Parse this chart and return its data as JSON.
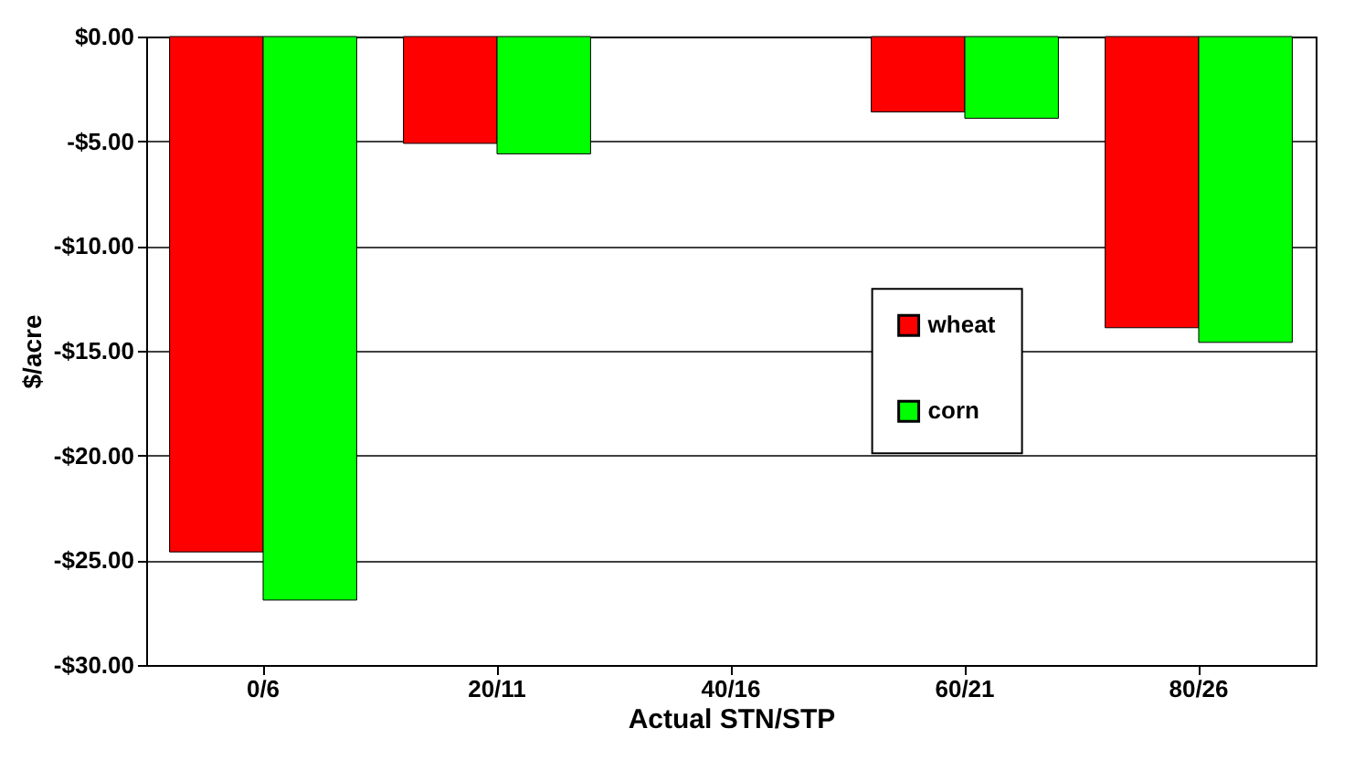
{
  "chart_data": {
    "type": "bar",
    "xlabel": "Actual STN/STP",
    "ylabel": "$/acre",
    "categories": [
      "0/6",
      "20/11",
      "40/16",
      "60/21",
      "80/26"
    ],
    "series": [
      {
        "name": "wheat",
        "color": "#ff0000",
        "values": [
          -24.6,
          -5.1,
          null,
          -3.6,
          -13.9
        ]
      },
      {
        "name": "corn",
        "color": "#00ff00",
        "values": [
          -26.9,
          -5.6,
          null,
          -3.9,
          -14.6
        ]
      }
    ],
    "ylim": [
      -30,
      0
    ],
    "yticks": [
      {
        "value": -30,
        "label": "-$30.00"
      },
      {
        "value": -25,
        "label": "-$25.00"
      },
      {
        "value": -20,
        "label": "-$20.00"
      },
      {
        "value": -15,
        "label": "-$15.00"
      },
      {
        "value": -10,
        "label": "-$10.00"
      },
      {
        "value": -5,
        "label": "-$5.00"
      },
      {
        "value": 0,
        "label": "$0.00"
      }
    ],
    "grid": "y",
    "legend": "right"
  }
}
